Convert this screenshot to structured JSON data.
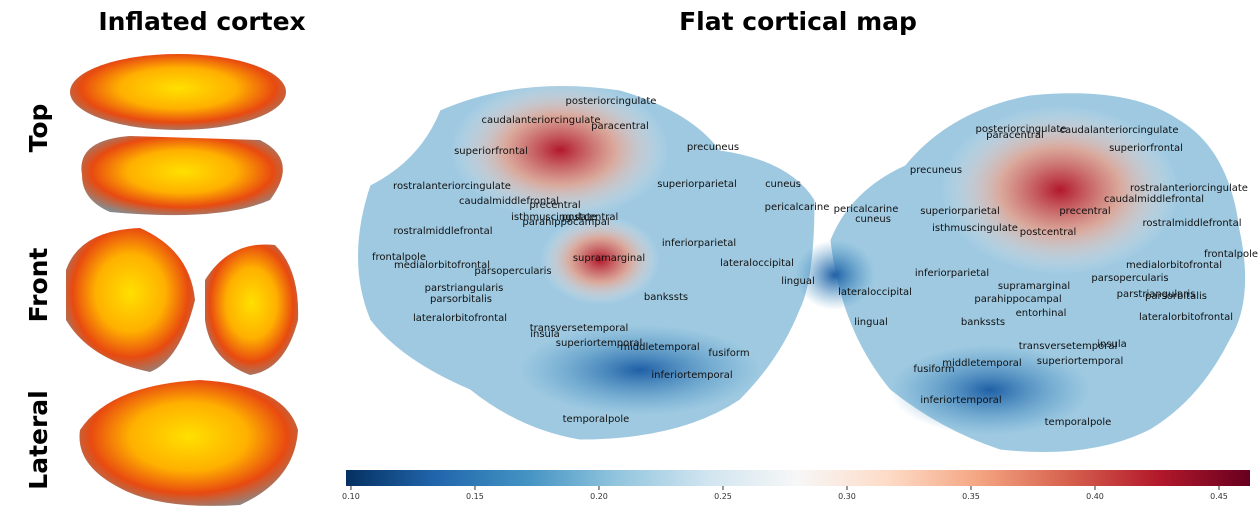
{
  "titles": {
    "inflated": "Inflated cortex",
    "flat": "Flat cortical map"
  },
  "views": [
    "Top",
    "Front",
    "Lateral"
  ],
  "left_hemisphere": {
    "labels": [
      "posteriorcingulate",
      "caudalanteriorcingulate",
      "paracentral",
      "precuneus",
      "superiorfrontal",
      "superiorparietal",
      "cuneus",
      "rostralanteriorcingulate",
      "caudalmiddlefrontal",
      "precentral",
      "isthmuscingulate",
      "postcentral",
      "parahippocampal",
      "pericalcarine",
      "rostralmiddlefrontal",
      "inferiorparietal",
      "frontalpole",
      "medialorbitofrontal",
      "supramarginal",
      "lateraloccipital",
      "parsopercularis",
      "lingual",
      "parstriangularis",
      "parsorbitalis",
      "bankssts",
      "lateralorbitofrontal",
      "transversetemporal",
      "insula",
      "superiortemporal",
      "middletemporal",
      "fusiform",
      "inferiortemporal",
      "temporalpole"
    ]
  },
  "right_hemisphere": {
    "labels": [
      "posteriorcingulate",
      "caudalanteriorcingulate",
      "paracentral",
      "superiorfrontal",
      "precuneus",
      "rostralanteriorcingulate",
      "pericalcarine",
      "cuneus",
      "caudalmiddlefrontal",
      "superiorparietal",
      "precentral",
      "isthmuscingulate",
      "postcentral",
      "rostralmiddlefrontal",
      "frontalpole",
      "inferiorparietal",
      "medialorbitofrontal",
      "supramarginal",
      "parsopercularis",
      "lateraloccipital",
      "parahippocampal",
      "parstriangularis",
      "parsorbitalis",
      "entorhinal",
      "bankssts",
      "lateralorbitofrontal",
      "lingual",
      "transversetemporal",
      "insula",
      "superiortemporal",
      "middletemporal",
      "fusiform",
      "inferiortemporal",
      "temporalpole"
    ]
  },
  "colorbar": {
    "colormap": "RdBu_r",
    "lim": [
      0.098,
      0.4625
    ],
    "ticks": [
      {
        "value": 0.1,
        "label": "0.10"
      },
      0.15,
      {
        "value": 0.2,
        "label": "0.20"
      },
      0.25,
      {
        "value": 0.3,
        "label": "0.30"
      },
      0.35,
      {
        "value": 0.4,
        "label": "0.40"
      },
      0.45
    ]
  }
}
